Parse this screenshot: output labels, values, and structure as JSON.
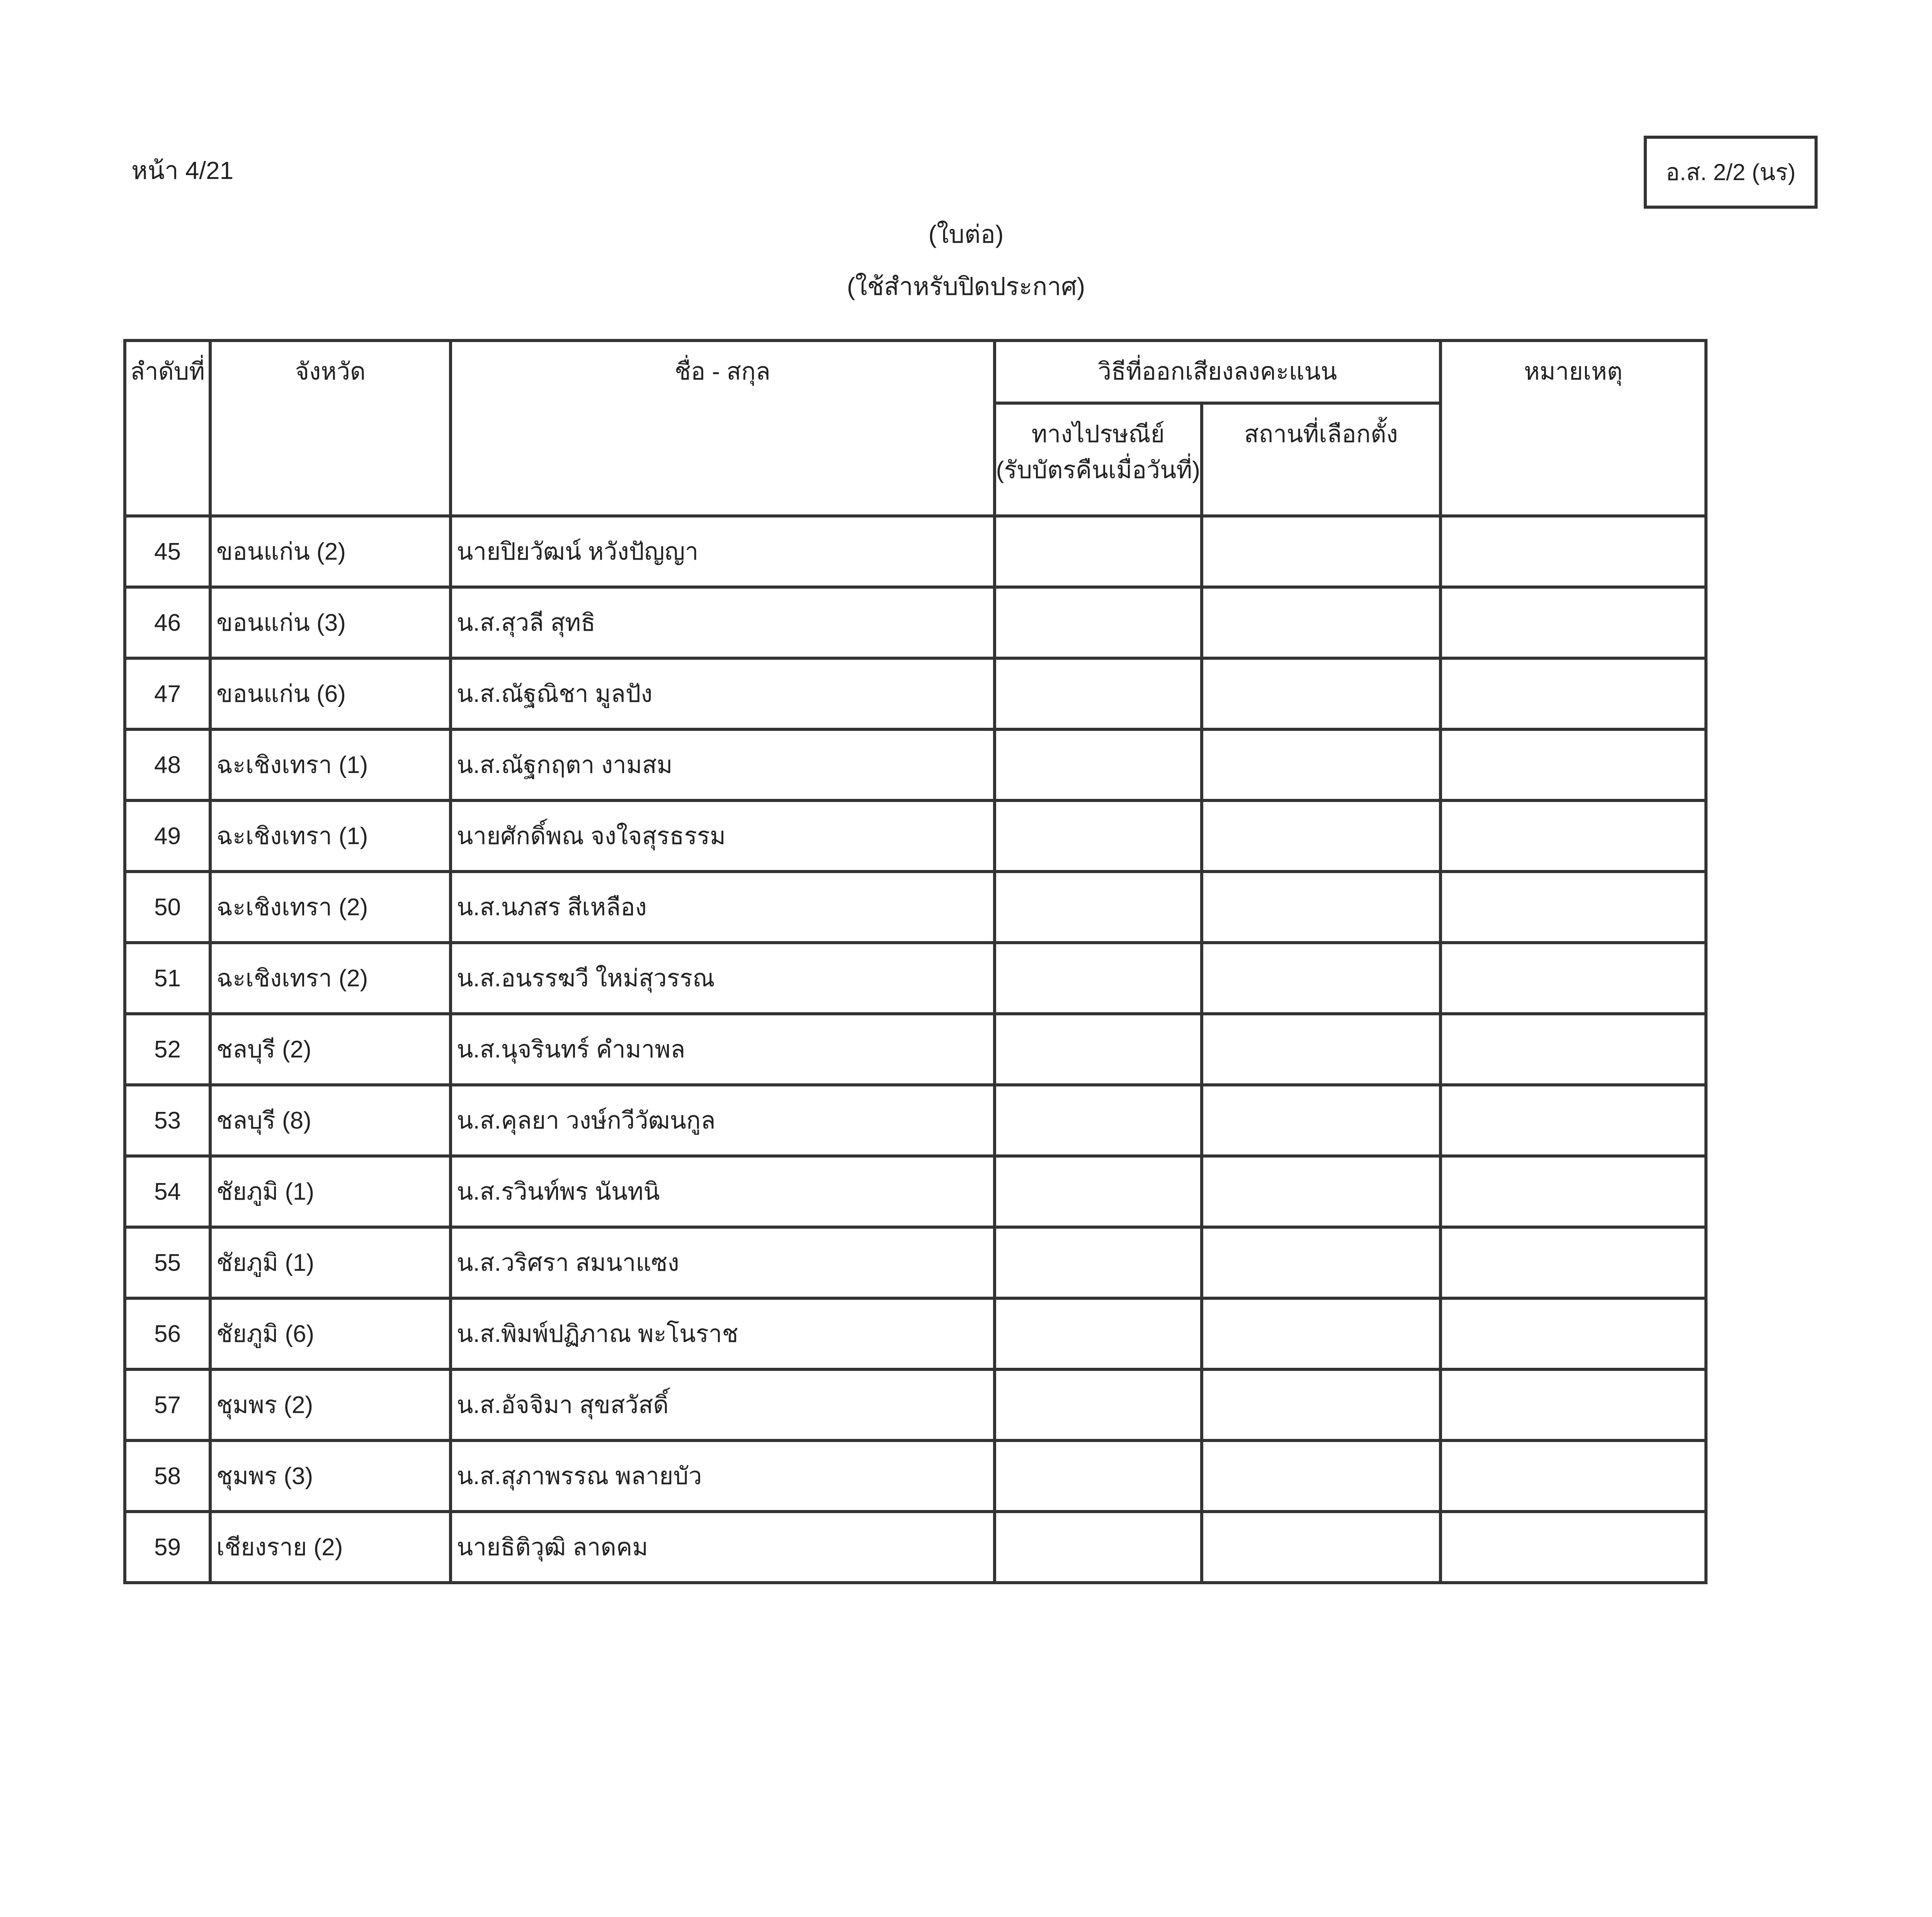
{
  "page_number": "หน้า 4/21",
  "form_code": "อ.ส. 2/2 (นร)",
  "subtitle_continued": "(ใบต่อ)",
  "subtitle_purpose": "(ใช้สำหรับปิดประกาศ)",
  "table": {
    "headers": {
      "no": "ลำดับที่",
      "province": "จังหวัด",
      "name": "ชื่อ - สกุล",
      "voting_method": "วิธีที่ออกเสียงลงคะแนน",
      "postal": "ทางไปรษณีย์",
      "postal_note": "(รับบัตรคืนเมื่อวันที่)",
      "polling_station": "สถานที่เลือกตั้ง",
      "remarks": "หมายเหตุ"
    },
    "rows": [
      {
        "no": "45",
        "province": "ขอนแก่น (2)",
        "name": "นายปิยวัฒน์ หวังปัญญา"
      },
      {
        "no": "46",
        "province": "ขอนแก่น (3)",
        "name": "น.ส.สุวลี สุทธิ"
      },
      {
        "no": "47",
        "province": "ขอนแก่น (6)",
        "name": "น.ส.ณัฐณิชา มูลปัง"
      },
      {
        "no": "48",
        "province": "ฉะเชิงเทรา (1)",
        "name": "น.ส.ณัฐกฤตา งามสม"
      },
      {
        "no": "49",
        "province": "ฉะเชิงเทรา (1)",
        "name": "นายศักดิ์พณ จงใจสุรธรรม"
      },
      {
        "no": "50",
        "province": "ฉะเชิงเทรา (2)",
        "name": "น.ส.นภสร สีเหลือง"
      },
      {
        "no": "51",
        "province": "ฉะเชิงเทรา (2)",
        "name": "น.ส.อนรรฆวี ใหม่สุวรรณ"
      },
      {
        "no": "52",
        "province": "ชลบุรี (2)",
        "name": "น.ส.นุจรินทร์ คำมาพล"
      },
      {
        "no": "53",
        "province": "ชลบุรี (8)",
        "name": "น.ส.คุลยา วงษ์กวีวัฒนกูล"
      },
      {
        "no": "54",
        "province": "ชัยภูมิ (1)",
        "name": "น.ส.รวินท์พร นันทนิ"
      },
      {
        "no": "55",
        "province": "ชัยภูมิ (1)",
        "name": "น.ส.วริศรา สมนาแซง"
      },
      {
        "no": "56",
        "province": "ชัยภูมิ (6)",
        "name": "น.ส.พิมพ์ปฏิภาณ พะโนราช"
      },
      {
        "no": "57",
        "province": "ชุมพร (2)",
        "name": "น.ส.อัจจิมา สุขสวัสดิ์"
      },
      {
        "no": "58",
        "province": "ชุมพร (3)",
        "name": "น.ส.สุภาพรรณ พลายบัว"
      },
      {
        "no": "59",
        "province": "เชียงราย (2)",
        "name": "นายธิติวุฒิ ลาดคม"
      }
    ]
  }
}
